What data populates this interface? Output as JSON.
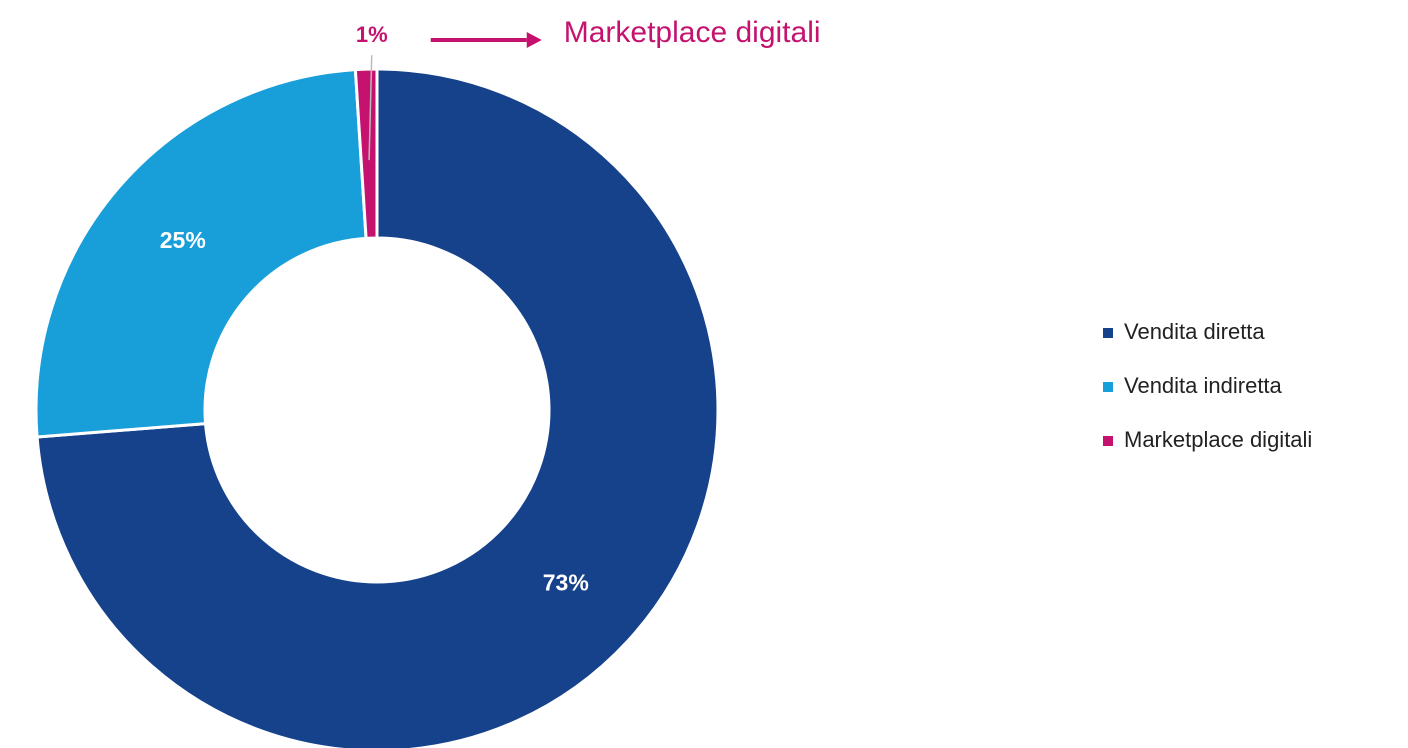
{
  "chart_data": {
    "type": "donut",
    "categories": [
      "Vendita diretta",
      "Vendita indiretta",
      "Marketplace digitali"
    ],
    "values": [
      73,
      25,
      1
    ],
    "value_labels": [
      "73%",
      "25%",
      "1%"
    ],
    "colors": [
      "#16428c",
      "#189fd9",
      "#c4126e"
    ],
    "legend": "right"
  }
}
